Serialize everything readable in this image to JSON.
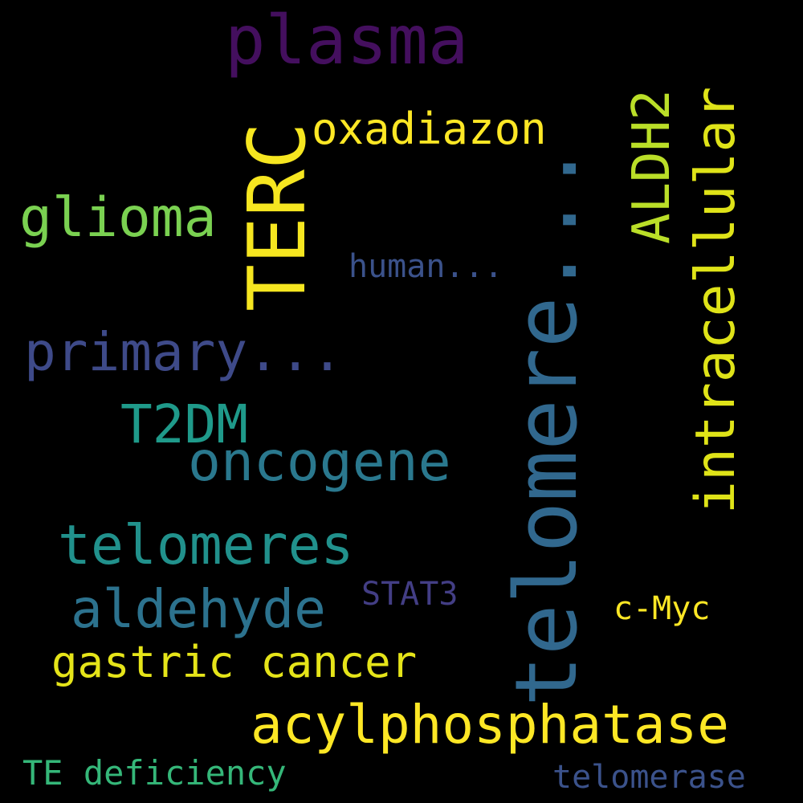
{
  "background": "#000000",
  "words": [
    {
      "id": "w-telomere",
      "text": "telome​re...",
      "color": "#31688e"
    },
    {
      "id": "w-plasma",
      "text": "plasma",
      "color": "#440f5e"
    },
    {
      "id": "w-terc",
      "text": "TERC",
      "color": "#f6e620"
    },
    {
      "id": "w-oxadiazon",
      "text": "oxadiazon",
      "color": "#fde725"
    },
    {
      "id": "w-aldh2",
      "text": "ALDH2",
      "color": "#bade28"
    },
    {
      "id": "w-intracellular",
      "text": "intracellular",
      "color": "#dfe318"
    },
    {
      "id": "w-glioma",
      "text": "glioma",
      "color": "#7ad151"
    },
    {
      "id": "w-human",
      "text": "human...",
      "color": "#3b528b"
    },
    {
      "id": "w-primary",
      "text": "primary...",
      "color": "#3e4a89"
    },
    {
      "id": "w-t2dm",
      "text": "T2DM",
      "color": "#1f9a8a"
    },
    {
      "id": "w-oncogene",
      "text": "oncogene",
      "color": "#2a788e"
    },
    {
      "id": "w-telomeres",
      "text": "telomeres",
      "color": "#21918c"
    },
    {
      "id": "w-aldehyde",
      "text": "aldehyde",
      "color": "#2c728e"
    },
    {
      "id": "w-stat3",
      "text": "STAT3",
      "color": "#433e85"
    },
    {
      "id": "w-cmyc",
      "text": "c-Myc",
      "color": "#fde725"
    },
    {
      "id": "w-gastric",
      "text": "gastric cancer",
      "color": "#e5e419"
    },
    {
      "id": "w-acylphosphatase",
      "text": "acylphosphatase",
      "color": "#fde725"
    },
    {
      "id": "w-te-deficiency",
      "text": "TE deficiency",
      "color": "#35b779"
    },
    {
      "id": "w-telomerase",
      "text": "telomerase",
      "color": "#3b528b"
    }
  ]
}
